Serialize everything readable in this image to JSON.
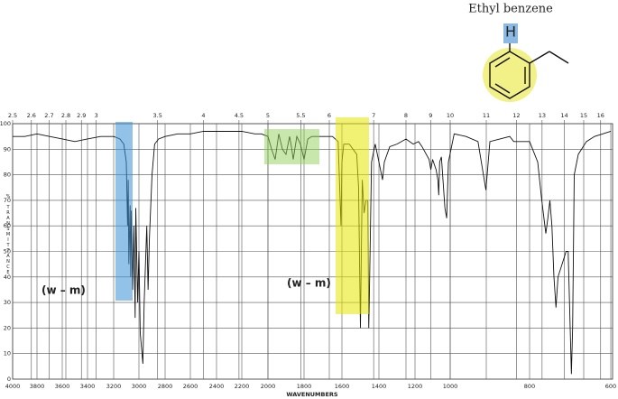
{
  "chart_data": {
    "type": "line",
    "title": "Ethyl benzene",
    "atom_label": "H",
    "annotations": [
      "(w – m)",
      "(w – m)"
    ],
    "xlabel": "WAVENUMBERS",
    "ylabel": "% TRANSMITTANCE",
    "xlim": [
      4000,
      600
    ],
    "xticks": [
      4000,
      3800,
      3600,
      3400,
      3200,
      3000,
      2800,
      2600,
      2400,
      2200,
      2000,
      1800,
      1600,
      1400,
      1200,
      1000,
      800,
      600
    ],
    "x2ticks": [
      2.5,
      2.6,
      2.7,
      2.8,
      2.9,
      3,
      3.5,
      4,
      4.5,
      5,
      5.5,
      6,
      7,
      8,
      9,
      10,
      11,
      12,
      13,
      14,
      15,
      16
    ],
    "ylim": [
      0,
      100
    ],
    "yticks": [
      0,
      10,
      20,
      30,
      40,
      50,
      60,
      70,
      80,
      90,
      100
    ],
    "grid": true,
    "series": [
      {
        "color": "#111111",
        "x": [
          4000,
          3900,
          3800,
          3700,
          3600,
          3500,
          3400,
          3300,
          3200,
          3150,
          3120,
          3100,
          3090,
          3085,
          3080,
          3070,
          3065,
          3060,
          3050,
          3040,
          3030,
          3025,
          3010,
          3000,
          2990,
          2970,
          2960,
          2950,
          2940,
          2930,
          2920,
          2900,
          2880,
          2850,
          2800,
          2700,
          2600,
          2500,
          2400,
          2300,
          2200,
          2100,
          2050,
          2000,
          1980,
          1960,
          1940,
          1920,
          1900,
          1880,
          1870,
          1860,
          1840,
          1820,
          1800,
          1780,
          1760,
          1700,
          1650,
          1620,
          1605,
          1600,
          1590,
          1560,
          1540,
          1520,
          1510,
          1500,
          1495,
          1490,
          1480,
          1470,
          1460,
          1455,
          1450,
          1440,
          1420,
          1400,
          1380,
          1370,
          1340,
          1300,
          1250,
          1210,
          1180,
          1160,
          1120,
          1110,
          1100,
          1080,
          1070,
          1065,
          1060,
          1050,
          1030,
          1020,
          1010,
          990,
          960,
          930,
          910,
          900,
          850,
          840,
          800,
          780,
          770,
          760,
          755,
          750,
          745,
          740,
          735,
          730,
          720,
          710,
          705,
          700,
          697,
          694,
          690,
          680,
          660,
          640,
          620,
          600
        ],
        "values": [
          95,
          95,
          96,
          95,
          94,
          93,
          94,
          95,
          95,
          94,
          92,
          85,
          60,
          78,
          45,
          68,
          40,
          66,
          35,
          60,
          24,
          67,
          30,
          50,
          18,
          6,
          30,
          45,
          60,
          35,
          55,
          80,
          92,
          94,
          95,
          96,
          96,
          97,
          97,
          97,
          97,
          96,
          96,
          95,
          90,
          86,
          96,
          90,
          88,
          95,
          91,
          86,
          95,
          92,
          86,
          94,
          95,
          95,
          95,
          93,
          60,
          85,
          92,
          92,
          90,
          88,
          75,
          20,
          50,
          78,
          65,
          70,
          70,
          20,
          40,
          85,
          92,
          85,
          78,
          85,
          91,
          92,
          94,
          92,
          93,
          91,
          86,
          82,
          86,
          82,
          78,
          72,
          85,
          87,
          67,
          63,
          85,
          96,
          95,
          93,
          74,
          93,
          95,
          93,
          93,
          85,
          70,
          57,
          63,
          70,
          60,
          40,
          28,
          40,
          45,
          50,
          50,
          20,
          2,
          20,
          80,
          88,
          93,
          95,
          96,
          97
        ]
      }
    ]
  }
}
